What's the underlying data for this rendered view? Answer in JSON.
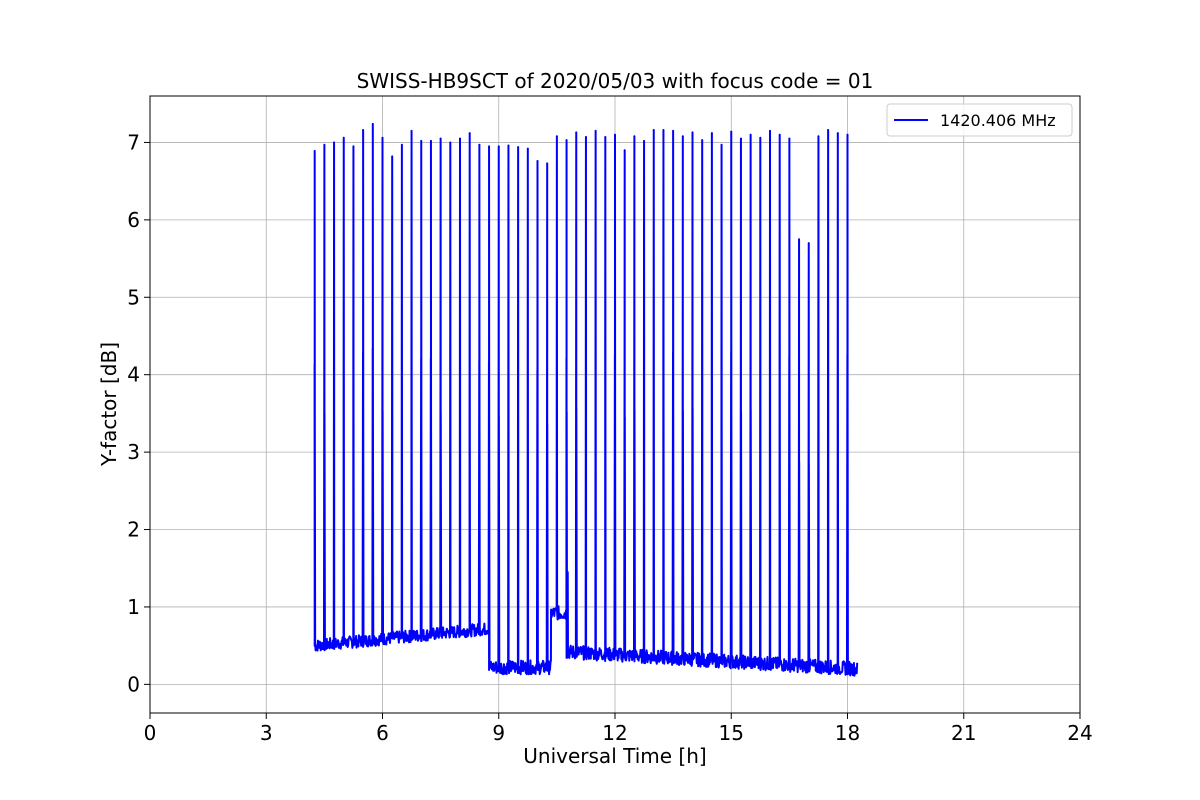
{
  "chart_data": {
    "type": "line",
    "title": "SWISS-HB9SCT of 2020/05/03 with focus code = 01",
    "xlabel": "Universal Time [h]",
    "ylabel": "Y-factor [dB]",
    "xlim": [
      0,
      24
    ],
    "ylim": [
      -0.37,
      7.6
    ],
    "xticks": [
      0,
      3,
      6,
      9,
      12,
      15,
      18,
      21,
      24
    ],
    "yticks": [
      0,
      1,
      2,
      3,
      4,
      5,
      6,
      7
    ],
    "grid": true,
    "legend_position": "top-right",
    "series": [
      {
        "name": "1420.406 MHz",
        "color": "#0000ff",
        "spikes": [
          {
            "x": 4.25,
            "y": 6.89
          },
          {
            "x": 4.5,
            "y": 6.97
          },
          {
            "x": 4.75,
            "y": 7.0
          },
          {
            "x": 5.0,
            "y": 7.06
          },
          {
            "x": 5.25,
            "y": 6.95
          },
          {
            "x": 5.5,
            "y": 7.16
          },
          {
            "x": 5.75,
            "y": 7.24
          },
          {
            "x": 6.0,
            "y": 7.06
          },
          {
            "x": 6.25,
            "y": 6.82
          },
          {
            "x": 6.5,
            "y": 6.97
          },
          {
            "x": 6.75,
            "y": 7.15
          },
          {
            "x": 7.0,
            "y": 7.02
          },
          {
            "x": 7.25,
            "y": 7.02
          },
          {
            "x": 7.5,
            "y": 7.05
          },
          {
            "x": 7.75,
            "y": 7.0
          },
          {
            "x": 8.0,
            "y": 7.05
          },
          {
            "x": 8.25,
            "y": 7.12
          },
          {
            "x": 8.5,
            "y": 6.97
          },
          {
            "x": 8.75,
            "y": 6.95
          },
          {
            "x": 9.0,
            "y": 6.95
          },
          {
            "x": 9.25,
            "y": 6.96
          },
          {
            "x": 9.5,
            "y": 6.94
          },
          {
            "x": 9.75,
            "y": 6.92
          },
          {
            "x": 10.0,
            "y": 6.76
          },
          {
            "x": 10.25,
            "y": 6.73
          },
          {
            "x": 10.5,
            "y": 7.08
          },
          {
            "x": 10.75,
            "y": 7.03
          },
          {
            "x": 11.0,
            "y": 7.13
          },
          {
            "x": 11.25,
            "y": 7.07
          },
          {
            "x": 11.5,
            "y": 7.15
          },
          {
            "x": 11.75,
            "y": 7.07
          },
          {
            "x": 12.0,
            "y": 7.1
          },
          {
            "x": 12.25,
            "y": 6.9
          },
          {
            "x": 12.5,
            "y": 7.08
          },
          {
            "x": 12.75,
            "y": 7.02
          },
          {
            "x": 13.0,
            "y": 7.16
          },
          {
            "x": 13.25,
            "y": 7.16
          },
          {
            "x": 13.5,
            "y": 7.15
          },
          {
            "x": 13.75,
            "y": 7.08
          },
          {
            "x": 14.0,
            "y": 7.13
          },
          {
            "x": 14.25,
            "y": 7.03
          },
          {
            "x": 14.5,
            "y": 7.12
          },
          {
            "x": 14.75,
            "y": 6.97
          },
          {
            "x": 15.0,
            "y": 7.14
          },
          {
            "x": 15.25,
            "y": 7.05
          },
          {
            "x": 15.5,
            "y": 7.1
          },
          {
            "x": 15.75,
            "y": 7.06
          },
          {
            "x": 16.0,
            "y": 7.15
          },
          {
            "x": 16.25,
            "y": 7.1
          },
          {
            "x": 16.5,
            "y": 7.05
          },
          {
            "x": 16.75,
            "y": 5.75
          },
          {
            "x": 17.0,
            "y": 5.7
          },
          {
            "x": 17.25,
            "y": 7.08
          },
          {
            "x": 17.5,
            "y": 7.16
          },
          {
            "x": 17.75,
            "y": 7.12
          },
          {
            "x": 18.0,
            "y": 7.1
          }
        ],
        "baseline_segments": [
          {
            "x_start": 4.25,
            "x_end": 8.75,
            "y_start": 0.5,
            "y_end": 0.72,
            "noise": 0.08
          },
          {
            "x_start": 8.75,
            "x_end": 10.35,
            "y_start": 0.22,
            "y_end": 0.22,
            "noise": 0.09
          },
          {
            "x_start": 10.35,
            "x_end": 10.75,
            "y_start": 0.92,
            "y_end": 0.92,
            "noise": 0.09
          },
          {
            "x_start": 10.75,
            "x_end": 18.25,
            "y_start": 0.42,
            "y_end": 0.2,
            "noise": 0.09
          }
        ],
        "extra_peaks": [
          {
            "x": 10.75,
            "y": 2.25
          },
          {
            "x": 10.78,
            "y": 1.45
          }
        ]
      }
    ]
  }
}
